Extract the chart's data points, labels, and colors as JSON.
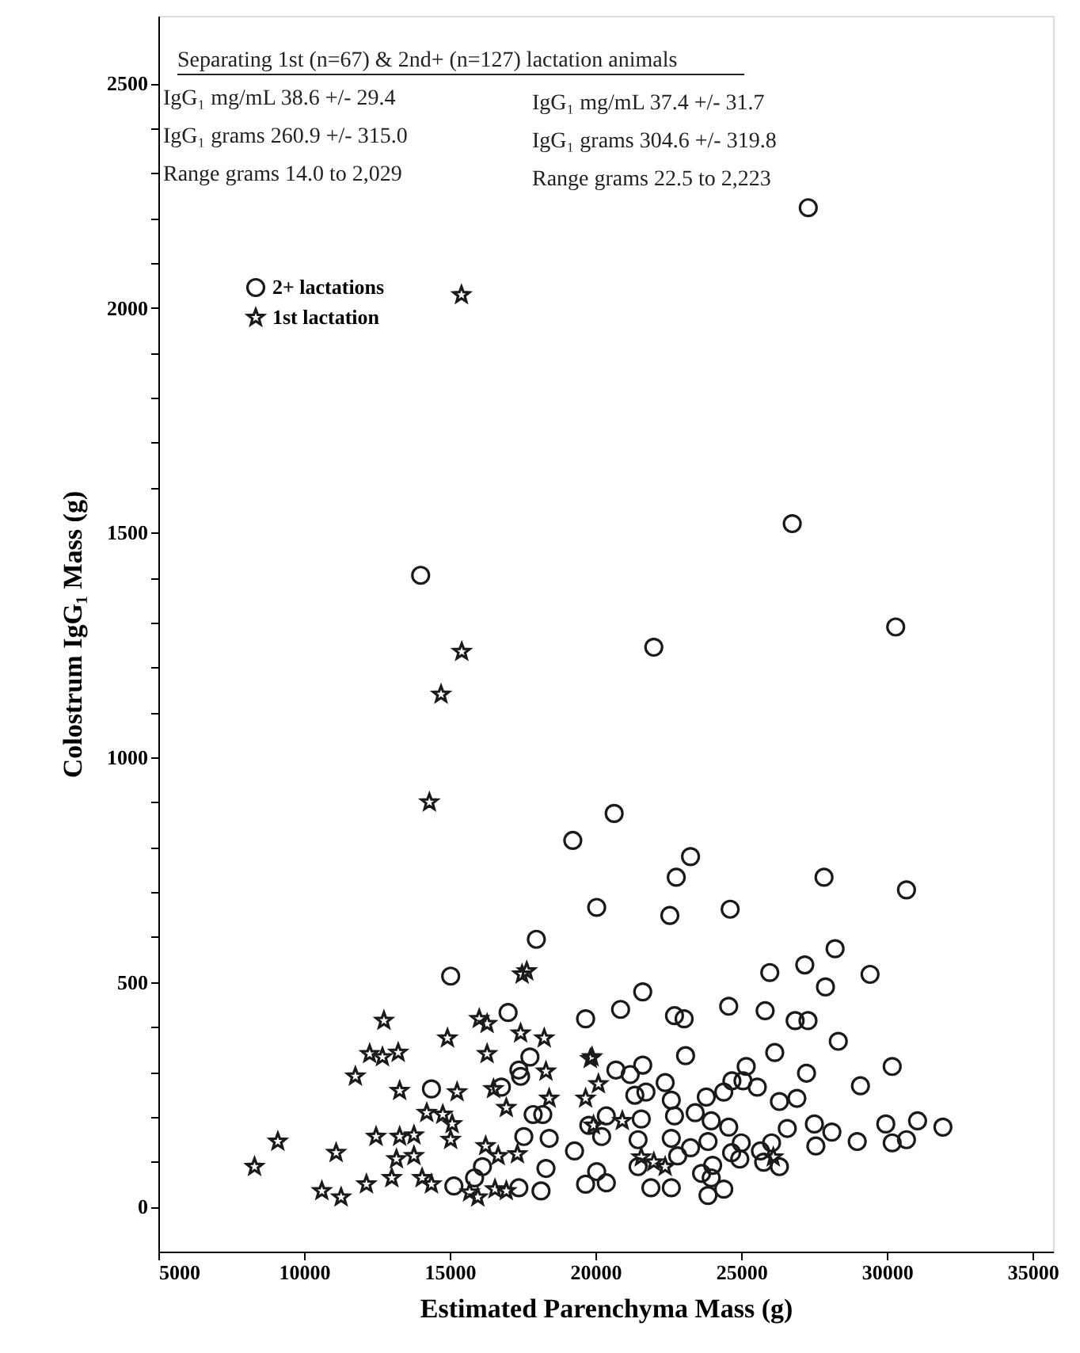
{
  "chart_data": {
    "type": "scatter",
    "xlabel": "Estimated Parenchyma Mass (g)",
    "ylabel": "Colostrum IgG₁ Mass (g)",
    "annotations": [
      "Separating 1st  (n=67) & 2nd+ (n=127) lactation animals",
      "IgG₁ mg/mL   38.6 +/- 29.4",
      "IgG₁ grams 260.9 +/- 315.0",
      "Range grams 14.0 to 2,029",
      "IgG₁ mg/mL 37.4 +/- 31.7",
      "IgG₁ grams 304.6 +/- 319.8",
      "Range grams 22.5 to 2,223"
    ],
    "xlim": [
      5000,
      35700
    ],
    "xticks": [
      5000,
      10000,
      15000,
      20000,
      25000,
      30000,
      35000
    ],
    "ylim": [
      -100,
      2650
    ],
    "yticks": [
      0,
      {
        "value": 100,
        "label": null
      },
      {
        "value": 200,
        "label": null
      },
      {
        "value": 300,
        "label": null
      },
      {
        "value": 400,
        "label": null
      },
      500,
      {
        "value": 600,
        "label": null
      },
      {
        "value": 700,
        "label": null
      },
      {
        "value": 800,
        "label": null
      },
      {
        "value": 900,
        "label": null
      },
      1000,
      {
        "value": 1100,
        "label": null
      },
      {
        "value": 1200,
        "label": null
      },
      {
        "value": 1300,
        "label": null
      },
      {
        "value": 1400,
        "label": null
      },
      1500,
      {
        "value": 1600,
        "label": null
      },
      {
        "value": 1700,
        "label": null
      },
      {
        "value": 1800,
        "label": null
      },
      {
        "value": 1900,
        "label": null
      },
      2000,
      {
        "value": 2100,
        "label": null
      },
      {
        "value": 2200,
        "label": null
      },
      {
        "value": 2300,
        "label": null
      },
      {
        "value": 2400,
        "label": null
      },
      2500
    ],
    "grid": false,
    "legend": "top left",
    "series": [
      {
        "name": "2+ lactations",
        "color": "#1a1a1a",
        "marker": "circle",
        "x": [
          27300,
          26750,
          30300,
          22000,
          14000,
          20640,
          19220,
          23260,
          22770,
          27840,
          30670,
          20040,
          22550,
          24620,
          17970,
          28220,
          27180,
          25980,
          29420,
          15030,
          27890,
          21620,
          20860,
          24570,
          25820,
          17000,
          19660,
          22710,
          23040,
          26850,
          27290,
          28330,
          23090,
          26150,
          17750,
          30180,
          17370,
          17430,
          20700,
          21190,
          21620,
          27240,
          25170,
          25060,
          24680,
          25550,
          22390,
          29090,
          16770,
          21350,
          21730,
          22600,
          23800,
          24400,
          26310,
          26910,
          20370,
          21570,
          22710,
          23420,
          23970,
          24570,
          26580,
          27510,
          28110,
          29960,
          31050,
          31920,
          17860,
          18190,
          19770,
          20210,
          21460,
          22600,
          23260,
          23860,
          25000,
          26040,
          27560,
          28980,
          30180,
          30670,
          17540,
          18410,
          19280,
          22820,
          24670,
          24950,
          25660,
          25770,
          26310,
          24020,
          23640,
          21460,
          16120,
          18300,
          20040,
          20370,
          19660,
          21900,
          22600,
          23860,
          24400,
          23970,
          15140,
          15850,
          17370,
          18130,
          14370
        ],
        "values": [
          2223,
          1520,
          1290,
          1245,
          1405,
          875,
          815,
          779,
          733,
          733,
          705,
          666,
          648,
          662,
          595,
          574,
          538,
          521,
          517,
          513,
          489,
          478,
          439,
          446,
          436,
          432,
          418,
          425,
          418,
          414,
          414,
          368,
          336,
          343,
          333,
          312,
          304,
          290,
          304,
          294,
          315,
          297,
          312,
          280,
          280,
          266,
          276,
          269,
          266,
          248,
          255,
          237,
          244,
          255,
          234,
          241,
          202,
          195,
          202,
          209,
          191,
          177,
          174,
          184,
          166,
          184,
          191,
          177,
          205,
          205,
          181,
          156,
          149,
          152,
          131,
          145,
          142,
          142,
          135,
          145,
          142,
          149,
          156,
          152,
          124,
          113,
          120,
          106,
          124,
          99,
          89,
          92,
          74,
          89,
          89,
          85,
          78,
          53,
          50,
          42,
          42,
          25,
          39,
          64,
          46,
          64,
          42,
          35,
          262
        ]
      },
      {
        "name": "1st lactation",
        "color": "#1a1a1a",
        "marker": "star",
        "x": [
          15400,
          15410,
          14700,
          14300,
          17480,
          17640,
          12740,
          16010,
          16280,
          14920,
          17430,
          18240,
          12250,
          12690,
          13230,
          16280,
          19880,
          11760,
          18300,
          13280,
          15250,
          16500,
          16940,
          14210,
          14760,
          15080,
          18410,
          19660,
          12470,
          13280,
          13770,
          15030,
          9100,
          16230,
          16660,
          17320,
          11100,
          13170,
          13770,
          8300,
          13010,
          12140,
          10610,
          11270,
          14050,
          14370,
          15960,
          15680,
          16550,
          16940,
          19820,
          20100,
          19930,
          20920,
          21570,
          22000,
          22390,
          25930,
          26100
        ],
        "values": [
          2029,
          1235,
          1140,
          900,
          517,
          524,
          414,
          418,
          407,
          375,
          386,
          375,
          340,
          333,
          343,
          340,
          333,
          290,
          301,
          258,
          255,
          262,
          220,
          209,
          205,
          184,
          241,
          241,
          156,
          156,
          159,
          149,
          145,
          135,
          113,
          117,
          120,
          106,
          113,
          89,
          64,
          50,
          35,
          21,
          64,
          50,
          21,
          32,
          39,
          35,
          329,
          273,
          181,
          191,
          110,
          99,
          89,
          null,
          110
        ]
      }
    ]
  }
}
